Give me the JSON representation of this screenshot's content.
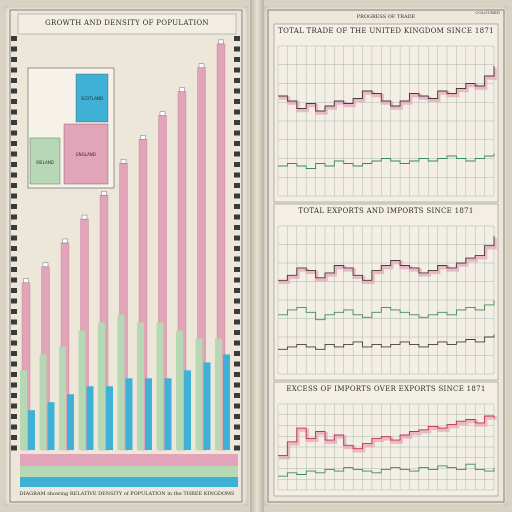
{
  "page": {
    "corner_label": "COLOURED",
    "left_title": "GROWTH AND DENSITY OF POPULATION",
    "left_footer": "DIAGRAM showing RELATIVE DENSITY of POPULATION in the THREE KINGDOMS",
    "inset_labels": [
      "SCOTLAND",
      "IRELAND",
      "ENGLAND"
    ],
    "right_header": "PROGRESS OF TRADE"
  },
  "colors": {
    "pink": "#e2a4b8",
    "pink_dark": "#c57d95",
    "green": "#b6d8b4",
    "blue": "#3fb0d6",
    "line_dark": "#4a3a3a",
    "line_green": "#3d8a5a",
    "line_red": "#c0324a",
    "grid": "#8aa0a0"
  },
  "chart_data": [
    {
      "type": "bar",
      "title": "GROWTH AND DENSITY OF POPULATION",
      "categories": [
        "",
        "",
        "",
        "",
        "",
        "",
        "",
        "",
        "",
        "",
        ""
      ],
      "series": [
        {
          "values": [
            21,
            23,
            26,
            29,
            32,
            36,
            39,
            42,
            45,
            48,
            51
          ]
        },
        {
          "values": [
            10,
            12,
            13,
            15,
            16,
            17,
            16,
            16,
            15,
            14,
            14
          ]
        },
        {
          "values": [
            5,
            6,
            7,
            8,
            8,
            9,
            9,
            9,
            10,
            11,
            12
          ]
        }
      ]
    },
    {
      "type": "line",
      "title": "TOTAL TRADE OF THE UNITED KINGDOM SINCE 1871",
      "x": [
        0,
        1,
        2,
        3,
        4,
        5,
        6,
        7,
        8,
        9,
        10,
        11,
        12,
        13,
        14,
        15,
        16,
        17,
        18,
        19,
        20,
        21,
        22,
        23
      ],
      "series": [
        {
          "values": [
            40,
            38,
            35,
            37,
            34,
            36,
            38,
            37,
            39,
            42,
            41,
            38,
            36,
            38,
            41,
            40,
            39,
            42,
            41,
            43,
            45,
            44,
            48,
            52
          ]
        },
        {
          "values": [
            12,
            13,
            12,
            11,
            13,
            12,
            14,
            13,
            12,
            13,
            14,
            15,
            14,
            13,
            14,
            15,
            14,
            15,
            16,
            15,
            14,
            15,
            16,
            17
          ]
        }
      ]
    },
    {
      "type": "line",
      "title": "TOTAL EXPORTS AND IMPORTS SINCE 1871",
      "x": [
        0,
        1,
        2,
        3,
        4,
        5,
        6,
        7,
        8,
        9,
        10,
        11,
        12,
        13,
        14,
        15,
        16,
        17,
        18,
        19,
        20,
        21,
        22,
        23
      ],
      "series": [
        {
          "values": [
            38,
            40,
            43,
            42,
            39,
            41,
            44,
            43,
            40,
            38,
            42,
            44,
            46,
            44,
            43,
            41,
            42,
            44,
            43,
            45,
            47,
            48,
            52,
            56
          ]
        },
        {
          "values": [
            24,
            26,
            27,
            25,
            22,
            24,
            25,
            26,
            24,
            23,
            25,
            27,
            26,
            25,
            24,
            23,
            24,
            25,
            24,
            26,
            27,
            26,
            28,
            30
          ]
        },
        {
          "values": [
            10,
            11,
            12,
            11,
            10,
            12,
            11,
            12,
            13,
            11,
            12,
            11,
            12,
            13,
            12,
            11,
            12,
            13,
            12,
            13,
            14,
            13,
            15,
            16
          ]
        }
      ]
    },
    {
      "type": "line",
      "title": "EXCESS OF IMPORTS OVER EXPORTS SINCE 1871",
      "x": [
        0,
        1,
        2,
        3,
        4,
        5,
        6,
        7,
        8,
        9,
        10,
        11,
        12,
        13,
        14,
        15,
        16,
        17,
        18,
        19,
        20,
        21,
        22,
        23
      ],
      "series": [
        {
          "values": [
            20,
            28,
            36,
            30,
            34,
            29,
            32,
            26,
            24,
            27,
            30,
            31,
            29,
            32,
            34,
            35,
            37,
            36,
            38,
            40,
            41,
            39,
            43,
            42
          ]
        },
        {
          "values": [
            8,
            10,
            9,
            11,
            10,
            12,
            11,
            13,
            12,
            11,
            10,
            12,
            13,
            12,
            11,
            13,
            12,
            14,
            13,
            12,
            15,
            12,
            11,
            13
          ]
        }
      ]
    }
  ]
}
